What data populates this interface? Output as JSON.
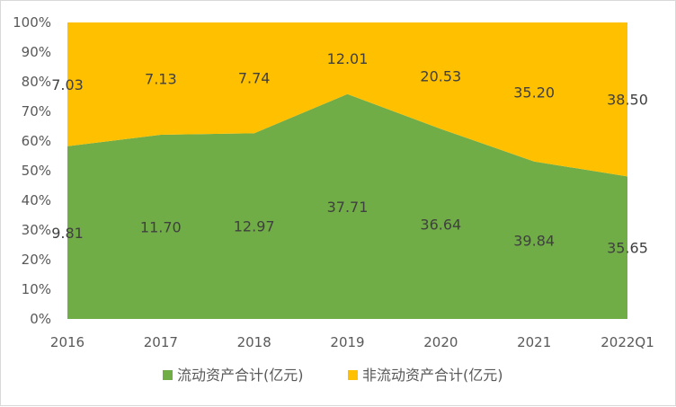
{
  "chart_data": {
    "type": "area",
    "stacking": "percent",
    "categories": [
      "2016",
      "2017",
      "2018",
      "2019",
      "2020",
      "2021",
      "2022Q1"
    ],
    "series": [
      {
        "name": "流动资产合计(亿元)",
        "values": [
          9.81,
          11.7,
          12.97,
          37.71,
          36.64,
          39.84,
          35.65
        ],
        "labels": [
          "9.81",
          "11.70",
          "12.97",
          "37.71",
          "36.64",
          "39.84",
          "35.65"
        ],
        "color": "#70ad47"
      },
      {
        "name": "非流动资产合计(亿元)",
        "values": [
          7.03,
          7.13,
          7.74,
          12.01,
          20.53,
          35.2,
          38.5
        ],
        "labels": [
          "7.03",
          "7.13",
          "7.74",
          "12.01",
          "20.53",
          "35.20",
          "38.50"
        ],
        "color": "#ffc000"
      }
    ],
    "y_ticks": [
      "0%",
      "10%",
      "20%",
      "30%",
      "40%",
      "50%",
      "60%",
      "70%",
      "80%",
      "90%",
      "100%"
    ],
    "ylim": [
      0,
      100
    ],
    "grid": false,
    "legend_position": "bottom"
  }
}
